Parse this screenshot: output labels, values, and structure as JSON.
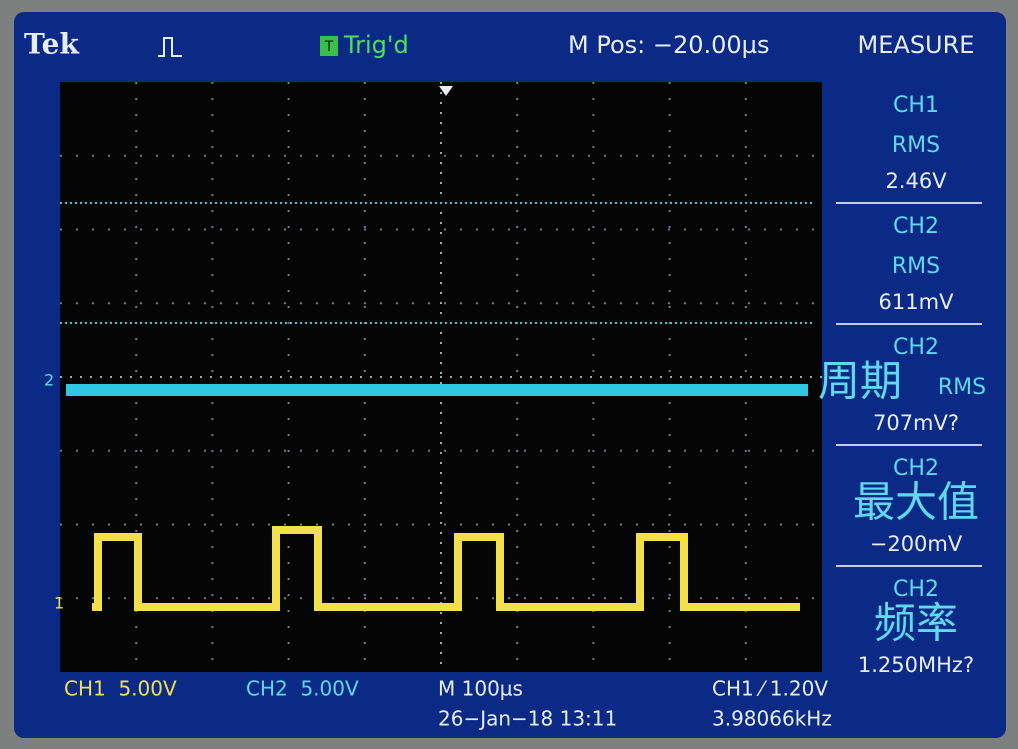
{
  "header": {
    "brand": "Tek",
    "trigger_status": "Trig'd",
    "trigger_icon": "T",
    "m_pos": "M Pos: −20.00µs"
  },
  "measure": {
    "title": "MEASURE",
    "items": [
      {
        "channel": "CH1",
        "label": "RMS",
        "value": "2.46V"
      },
      {
        "channel": "CH2",
        "label": "RMS",
        "value": "611mV"
      },
      {
        "channel": "CH2",
        "label": "周期",
        "extra": "RMS",
        "value": "707mV?"
      },
      {
        "channel": "CH2",
        "label": "最大值",
        "value": "−200mV"
      },
      {
        "channel": "CH2",
        "label": "频率",
        "value": "1.250MHz?"
      }
    ]
  },
  "markers": {
    "ch2": "2",
    "ch1": "1"
  },
  "footer": {
    "ch1_scale": "CH1  5.00V",
    "ch2_scale": "CH2  5.00V",
    "timebase": "M 100µs",
    "datetime": "26−Jan−18 13:11",
    "trigger": "CH1 ⁄ 1.20V",
    "frequency": "3.98066kHz"
  }
}
